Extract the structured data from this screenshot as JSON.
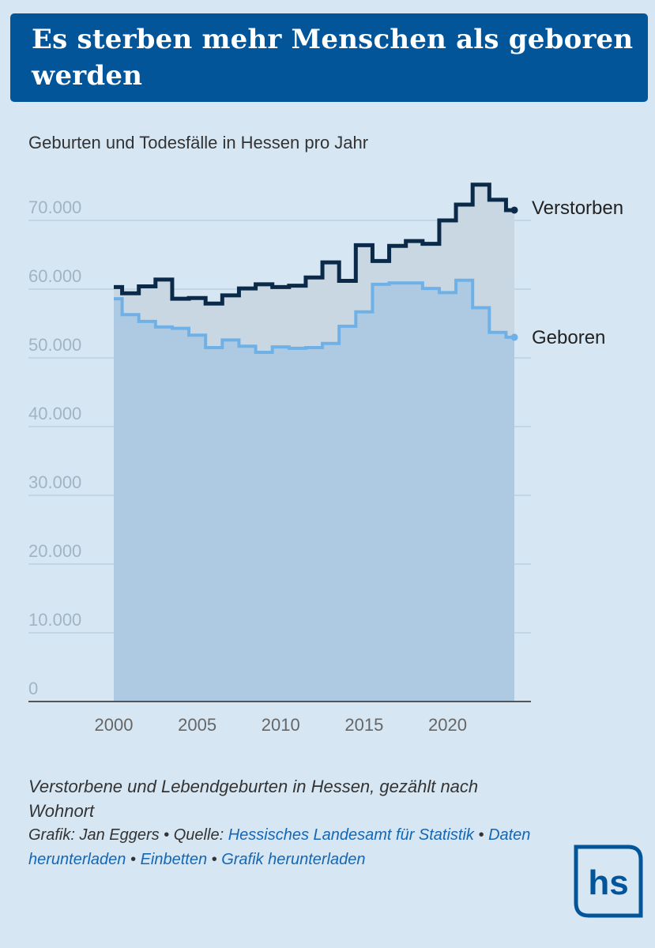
{
  "title": "Es sterben mehr Menschen als geboren werden",
  "subtitle": "Geburten und Todesfälle in Hessen pro Jahr",
  "caption": "Verstorbene und Lebendgeburten in Hessen, gezählt nach Wohnort",
  "credits": {
    "graphic_prefix": "Grafik: Jan Eggers",
    "source_prefix": "Quelle:",
    "source_link": "Hessisches Landesamt für Statistik",
    "download_data": "Daten herunterladen",
    "embed": "Einbetten",
    "download_graphic": "Grafik herunterladen",
    "separator": " • "
  },
  "logo_text": "hs",
  "colors": {
    "title_bg": "#03559a",
    "background": "#d6e6f3",
    "deaths_line": "#0b2a4a",
    "births_line": "#6fb1e6",
    "births_area": "#adcae2",
    "gap_area": "#c9d7e3",
    "link": "#1467b5"
  },
  "chart_data": {
    "type": "line",
    "step": true,
    "x": [
      2000,
      2001,
      2002,
      2003,
      2004,
      2005,
      2006,
      2007,
      2008,
      2009,
      2010,
      2011,
      2012,
      2013,
      2014,
      2015,
      2016,
      2017,
      2018,
      2019,
      2020,
      2021,
      2022,
      2023,
      2024
    ],
    "series": [
      {
        "name": "Verstorben",
        "values": [
          60300,
          59400,
          60400,
          61400,
          58600,
          58700,
          57900,
          59100,
          60100,
          60700,
          60300,
          60500,
          61700,
          63900,
          61200,
          66400,
          64100,
          66300,
          67000,
          66600,
          70000,
          72300,
          75200,
          73000,
          71500
        ]
      },
      {
        "name": "Geboren",
        "values": [
          58600,
          56300,
          55300,
          54500,
          54300,
          53300,
          51500,
          52600,
          51700,
          50800,
          51600,
          51400,
          51500,
          52100,
          54600,
          56700,
          60700,
          60900,
          60900,
          60100,
          59500,
          61300,
          57300,
          53700,
          53000
        ]
      }
    ],
    "x_ticks": [
      2000,
      2005,
      2010,
      2015,
      2020
    ],
    "y_ticks": [
      0,
      10000,
      20000,
      30000,
      40000,
      50000,
      60000,
      70000
    ],
    "y_tick_labels": [
      "0",
      "10.000",
      "20.000",
      "30.000",
      "40.000",
      "50.000",
      "60.000",
      "70.000"
    ],
    "ylim": [
      0,
      78000
    ],
    "xlim": [
      2000,
      2024
    ],
    "grid": true,
    "legend": "direct labels at right end of lines",
    "xlabel": "",
    "ylabel": ""
  }
}
